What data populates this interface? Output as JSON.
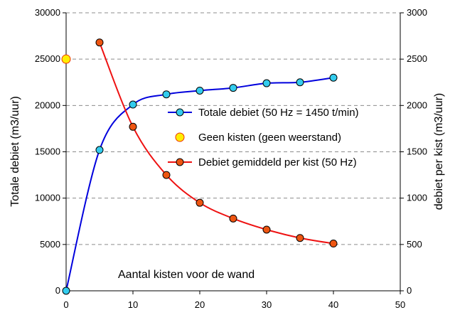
{
  "chart_data": {
    "type": "line",
    "title": "",
    "annotation": "Aantal kisten voor de wand",
    "ylabel_left": "Totale debiet (m3/uur)",
    "ylabel_right": "debiet per kist (m3/uur)",
    "xlim": [
      0,
      50
    ],
    "ylim_left": [
      0,
      30000
    ],
    "ylim_right": [
      0,
      3000
    ],
    "x_ticks": [
      0,
      10,
      20,
      30,
      40,
      50
    ],
    "y_ticks_left": [
      0,
      5000,
      10000,
      15000,
      20000,
      25000,
      30000
    ],
    "y_ticks_right": [
      0,
      500,
      1000,
      1500,
      2000,
      2500,
      3000
    ],
    "grid": "horizontal dashed",
    "legend_position": "center-right",
    "series": [
      {
        "name": "Totale debiet (50 Hz = 1450 t/min)",
        "axis": "left",
        "line_color": "#0000dd",
        "marker_color": "#33ccee",
        "x": [
          0,
          5,
          10,
          15,
          20,
          25,
          30,
          35,
          40
        ],
        "y": [
          0,
          15200,
          20100,
          21200,
          21600,
          21900,
          22400,
          22500,
          23000
        ]
      },
      {
        "name": "Geen kisten (geen weerstand)",
        "axis": "left",
        "line_color": null,
        "marker_color": "#ffee00",
        "marker_edge": "#ee3300",
        "x": [
          0
        ],
        "y": [
          25000
        ]
      },
      {
        "name": "Debiet gemiddeld per kist (50 Hz)",
        "axis": "right",
        "line_color": "#ee1111",
        "marker_color": "#ee5511",
        "x": [
          5,
          10,
          15,
          20,
          25,
          30,
          35,
          40
        ],
        "y": [
          2680,
          1770,
          1250,
          950,
          780,
          660,
          570,
          510
        ]
      }
    ]
  }
}
